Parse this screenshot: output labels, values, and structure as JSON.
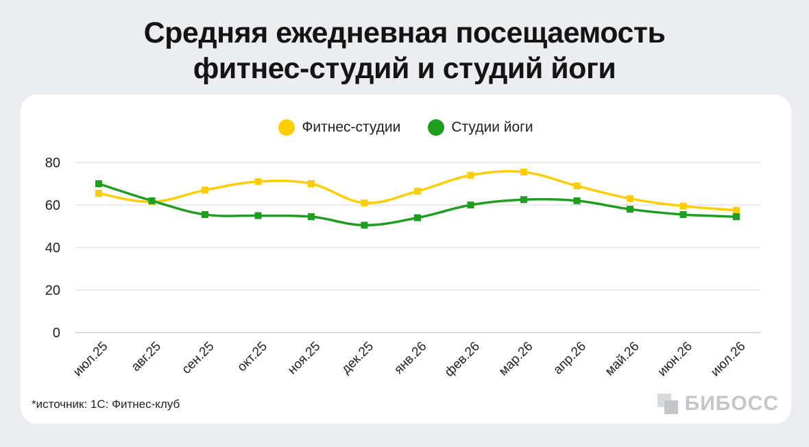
{
  "title": {
    "line1": "Средняя ежедневная посещаемость",
    "line2": "фитнес-студий и студий йоги"
  },
  "legend": {
    "fitness": "Фитнес-студии",
    "yoga": "Студии йоги"
  },
  "source": "*источник: 1С: Фитнес-клуб",
  "logo": "БИБОСС",
  "colors": {
    "fitness": "#ffcd00",
    "yoga": "#1e9e1e",
    "grid": "#d4d4d4",
    "axis_text": "#222222"
  },
  "chart_data": {
    "type": "line",
    "categories": [
      "июл.25",
      "авг.25",
      "сен.25",
      "окт.25",
      "ноя.25",
      "дек.25",
      "янв.26",
      "фев.26",
      "мар.26",
      "апр.26",
      "май.26",
      "июн.26",
      "июл.26"
    ],
    "series": [
      {
        "name": "Фитнес-студии",
        "values": [
          65.5,
          61.5,
          67,
          71,
          70,
          61,
          66.5,
          74,
          75.5,
          69,
          63,
          59.5,
          57.5
        ]
      },
      {
        "name": "Студии йоги",
        "values": [
          70,
          62,
          55.5,
          55,
          54.5,
          50.5,
          54,
          60,
          62.5,
          62,
          58,
          55.5,
          54.5
        ]
      }
    ],
    "yticks": [
      0,
      20,
      40,
      60,
      80
    ],
    "ylim": [
      0,
      80
    ],
    "grid": true,
    "legend_position": "top-center"
  }
}
